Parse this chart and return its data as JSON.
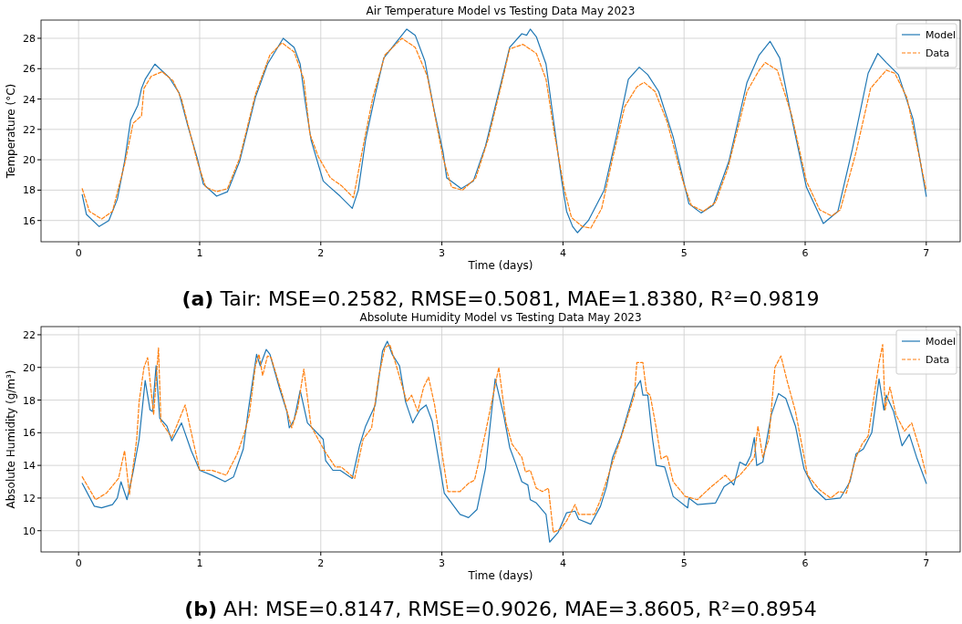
{
  "chart_data": [
    {
      "type": "line",
      "title": "Air Temperature Model vs Testing Data May 2023",
      "xlabel": "Time (days)",
      "ylabel": "Temperature (°C)",
      "annotations": [
        "(a) Tair: MSE=0.2582, RMSE=0.5081, MAE=1.8380, R²=0.9819"
      ],
      "xlim": [
        -0.31,
        7.28
      ],
      "xticks": [
        0,
        1,
        2,
        3,
        4,
        5,
        6,
        7
      ],
      "ylim": [
        14.6,
        29.2
      ],
      "yticks": [
        16,
        18,
        20,
        22,
        24,
        26,
        28
      ],
      "grid": true,
      "legend": "top right",
      "marker": "none",
      "series": [
        {
          "name": "Model",
          "color": "#1f77b4",
          "line_style": "solid",
          "x": [
            0.03,
            0.065,
            0.17,
            0.25,
            0.32,
            0.38,
            0.43,
            0.49,
            0.52,
            0.55,
            0.63,
            0.67,
            0.75,
            0.83,
            0.9,
            0.98,
            1.03,
            1.14,
            1.23,
            1.33,
            1.46,
            1.56,
            1.69,
            1.78,
            1.83,
            1.87,
            1.92,
            2.02,
            2.06,
            2.16,
            2.26,
            2.31,
            2.37,
            2.45,
            2.52,
            2.62,
            2.71,
            2.78,
            2.86,
            2.93,
            3.01,
            3.04,
            3.16,
            3.26,
            3.36,
            3.49,
            3.56,
            3.66,
            3.7,
            3.73,
            3.78,
            3.86,
            3.92,
            3.99,
            4.03,
            4.08,
            4.12,
            4.21,
            4.34,
            4.44,
            4.54,
            4.63,
            4.7,
            4.79,
            4.91,
            5.04,
            5.14,
            5.24,
            5.37,
            5.52,
            5.62,
            5.71,
            5.79,
            5.89,
            6.01,
            6.15,
            6.27,
            6.39,
            6.52,
            6.6,
            6.67,
            6.77,
            6.89,
            7.0
          ],
          "values": [
            17.7,
            16.4,
            15.6,
            16.0,
            17.4,
            19.9,
            22.6,
            23.6,
            24.7,
            25.3,
            26.3,
            26.0,
            25.4,
            24.4,
            22.3,
            20.1,
            18.4,
            17.6,
            17.9,
            19.9,
            24.1,
            26.3,
            28.0,
            27.4,
            26.3,
            23.9,
            21.3,
            18.6,
            18.3,
            17.6,
            16.8,
            18.0,
            21.3,
            24.3,
            26.7,
            27.7,
            28.6,
            28.2,
            26.5,
            23.5,
            20.5,
            18.8,
            18.1,
            18.6,
            20.9,
            25.1,
            27.4,
            28.3,
            28.2,
            28.6,
            28.1,
            26.3,
            22.7,
            18.6,
            16.6,
            15.6,
            15.2,
            16.0,
            18.0,
            21.5,
            25.3,
            26.1,
            25.6,
            24.5,
            21.5,
            17.1,
            16.5,
            17.0,
            19.9,
            25.1,
            26.9,
            27.8,
            26.7,
            22.7,
            18.2,
            15.8,
            16.6,
            20.7,
            25.7,
            27.0,
            26.4,
            25.6,
            22.7,
            17.6
          ]
        },
        {
          "name": "Data",
          "color": "#ff7f0e",
          "line_style": "dashed",
          "x": [
            0.03,
            0.09,
            0.19,
            0.28,
            0.38,
            0.45,
            0.52,
            0.54,
            0.6,
            0.69,
            0.78,
            0.85,
            0.98,
            1.05,
            1.14,
            1.23,
            1.33,
            1.46,
            1.58,
            1.68,
            1.78,
            1.86,
            1.91,
            1.98,
            2.08,
            2.17,
            2.27,
            2.35,
            2.43,
            2.53,
            2.67,
            2.78,
            2.88,
            3.01,
            3.08,
            3.17,
            3.28,
            3.38,
            3.49,
            3.56,
            3.67,
            3.78,
            3.86,
            3.93,
            4.01,
            4.07,
            4.16,
            4.23,
            4.32,
            4.41,
            4.51,
            4.61,
            4.67,
            4.76,
            4.86,
            4.99,
            5.06,
            5.16,
            5.26,
            5.36,
            5.52,
            5.62,
            5.67,
            5.77,
            5.89,
            6.01,
            6.12,
            6.22,
            6.29,
            6.42,
            6.54,
            6.67,
            6.74,
            6.84,
            7.0
          ],
          "values": [
            18.1,
            16.6,
            16.1,
            16.6,
            19.7,
            22.4,
            22.9,
            24.7,
            25.5,
            25.8,
            25.2,
            24.0,
            19.9,
            18.2,
            17.9,
            18.1,
            20.1,
            24.3,
            26.9,
            27.7,
            27.1,
            25.3,
            21.7,
            20.2,
            18.8,
            18.3,
            17.5,
            20.9,
            24.1,
            26.9,
            28.0,
            27.4,
            25.5,
            20.1,
            18.2,
            18.0,
            18.8,
            21.3,
            24.9,
            27.3,
            27.6,
            27.0,
            25.3,
            21.7,
            18.1,
            16.2,
            15.6,
            15.5,
            16.8,
            20.1,
            23.5,
            24.8,
            25.1,
            24.5,
            22.5,
            18.6,
            17.0,
            16.6,
            17.2,
            19.4,
            24.5,
            25.9,
            26.4,
            25.9,
            22.9,
            18.6,
            16.7,
            16.3,
            16.7,
            20.5,
            24.7,
            25.9,
            25.7,
            24.1,
            18.0
          ]
        }
      ]
    },
    {
      "type": "line",
      "title": "Absolute Humidity Model vs Testing Data May 2023",
      "xlabel": "Time (days)",
      "ylabel": "Absolute Humidity (g/m³)",
      "annotations": [
        "(b) AH: MSE=0.8147, RMSE=0.9026, MAE=3.8605, R²=0.8954"
      ],
      "xlim": [
        -0.31,
        7.28
      ],
      "xticks": [
        0,
        1,
        2,
        3,
        4,
        5,
        6,
        7
      ],
      "ylim": [
        8.7,
        22.5
      ],
      "yticks": [
        10,
        12,
        14,
        16,
        18,
        20,
        22
      ],
      "grid": true,
      "legend": "top right",
      "marker": "none",
      "series": [
        {
          "name": "Model",
          "color": "#1f77b4",
          "line_style": "solid",
          "x": [
            0.03,
            0.13,
            0.19,
            0.28,
            0.32,
            0.35,
            0.4,
            0.45,
            0.5,
            0.55,
            0.59,
            0.61,
            0.64,
            0.67,
            0.73,
            0.77,
            0.85,
            0.93,
            1.0,
            1.1,
            1.21,
            1.28,
            1.36,
            1.4,
            1.47,
            1.5,
            1.55,
            1.58,
            1.66,
            1.72,
            1.74,
            1.78,
            1.83,
            1.89,
            2.02,
            2.04,
            2.1,
            2.16,
            2.26,
            2.32,
            2.37,
            2.45,
            2.51,
            2.55,
            2.59,
            2.65,
            2.7,
            2.76,
            2.78,
            2.82,
            2.87,
            2.92,
            3.02,
            3.15,
            3.22,
            3.29,
            3.36,
            3.44,
            3.51,
            3.56,
            3.61,
            3.66,
            3.71,
            3.73,
            3.78,
            3.86,
            3.89,
            3.96,
            4.03,
            4.1,
            4.13,
            4.23,
            4.31,
            4.36,
            4.41,
            4.48,
            4.59,
            4.64,
            4.66,
            4.7,
            4.74,
            4.77,
            4.84,
            4.91,
            5.03,
            5.04,
            5.11,
            5.26,
            5.33,
            5.39,
            5.41,
            5.46,
            5.51,
            5.55,
            5.58,
            5.6,
            5.65,
            5.72,
            5.78,
            5.84,
            5.92,
            5.99,
            6.07,
            6.17,
            6.29,
            6.37,
            6.42,
            6.48,
            6.55,
            6.61,
            6.65,
            6.67,
            6.73,
            6.8,
            6.86,
            6.92,
            7.0
          ],
          "values": [
            12.9,
            11.5,
            11.4,
            11.6,
            12.0,
            13.0,
            11.9,
            13.6,
            15.6,
            19.2,
            17.4,
            17.3,
            20.1,
            16.9,
            16.4,
            15.5,
            16.6,
            14.9,
            13.7,
            13.4,
            13.0,
            13.3,
            15.0,
            17.3,
            20.8,
            20.1,
            21.1,
            20.8,
            18.7,
            17.3,
            16.3,
            16.8,
            18.6,
            16.6,
            15.6,
            14.3,
            13.7,
            13.7,
            13.2,
            15.2,
            16.4,
            17.7,
            21.0,
            21.6,
            20.8,
            20.1,
            17.9,
            16.6,
            16.9,
            17.4,
            17.7,
            16.7,
            12.3,
            11.0,
            10.8,
            11.3,
            13.8,
            19.3,
            17.1,
            15.1,
            14.1,
            13.0,
            12.8,
            11.9,
            11.7,
            11.0,
            9.3,
            9.9,
            11.1,
            11.2,
            10.7,
            10.4,
            11.5,
            12.7,
            14.5,
            15.8,
            18.6,
            19.2,
            18.3,
            18.3,
            15.6,
            14.0,
            13.9,
            12.1,
            11.4,
            12.0,
            11.6,
            11.7,
            12.7,
            13.0,
            12.8,
            14.2,
            14.0,
            14.6,
            15.7,
            14.0,
            14.2,
            17.1,
            18.4,
            18.1,
            16.4,
            13.8,
            12.6,
            11.9,
            12.0,
            13.0,
            14.7,
            15.0,
            16.0,
            19.3,
            17.4,
            18.3,
            17.3,
            15.2,
            15.9,
            14.5,
            12.9
          ]
        },
        {
          "name": "Data",
          "color": "#ff7f0e",
          "line_style": "dashed",
          "x": [
            0.03,
            0.14,
            0.23,
            0.33,
            0.38,
            0.42,
            0.48,
            0.5,
            0.54,
            0.57,
            0.62,
            0.66,
            0.68,
            0.77,
            0.88,
            1.0,
            1.1,
            1.22,
            1.31,
            1.37,
            1.41,
            1.46,
            1.49,
            1.52,
            1.56,
            1.59,
            1.68,
            1.76,
            1.81,
            1.86,
            1.92,
            2.03,
            2.12,
            2.17,
            2.28,
            2.35,
            2.42,
            2.48,
            2.53,
            2.57,
            2.62,
            2.71,
            2.75,
            2.8,
            2.85,
            2.89,
            2.94,
            3.05,
            3.15,
            3.22,
            3.27,
            3.36,
            3.47,
            3.53,
            3.58,
            3.66,
            3.69,
            3.73,
            3.78,
            3.83,
            3.88,
            3.92,
            3.98,
            4.03,
            4.1,
            4.13,
            4.26,
            4.31,
            4.41,
            4.48,
            4.59,
            4.61,
            4.66,
            4.69,
            4.72,
            4.77,
            4.81,
            4.86,
            4.91,
            5.01,
            5.11,
            5.21,
            5.34,
            5.39,
            5.46,
            5.53,
            5.58,
            5.61,
            5.65,
            5.7,
            5.75,
            5.8,
            5.85,
            5.92,
            6.02,
            6.12,
            6.21,
            6.28,
            6.34,
            6.42,
            6.47,
            6.52,
            6.61,
            6.64,
            6.66,
            6.7,
            6.75,
            6.82,
            6.88,
            6.95,
            7.0
          ],
          "values": [
            13.3,
            11.9,
            12.3,
            13.2,
            14.9,
            12.2,
            15.6,
            17.9,
            20.0,
            20.6,
            17.1,
            21.2,
            16.7,
            15.7,
            17.7,
            13.7,
            13.7,
            13.4,
            14.7,
            16.0,
            17.1,
            20.1,
            20.8,
            19.5,
            20.7,
            20.6,
            18.4,
            16.3,
            17.5,
            19.9,
            16.4,
            14.9,
            13.9,
            13.9,
            13.2,
            15.6,
            16.3,
            19.5,
            21.2,
            21.4,
            20.2,
            17.9,
            18.3,
            17.3,
            18.8,
            19.4,
            17.7,
            12.4,
            12.4,
            12.9,
            13.1,
            16.0,
            20.0,
            16.6,
            15.3,
            14.5,
            13.6,
            13.7,
            12.6,
            12.4,
            12.6,
            9.9,
            10.1,
            10.6,
            11.6,
            11.0,
            11.0,
            11.9,
            14.2,
            15.7,
            18.3,
            20.3,
            20.3,
            18.5,
            18.3,
            16.3,
            14.4,
            14.6,
            13.0,
            12.1,
            11.9,
            12.6,
            13.4,
            13.0,
            13.4,
            14.0,
            14.5,
            16.4,
            14.5,
            15.6,
            20.0,
            20.7,
            19.2,
            17.3,
            13.4,
            12.5,
            12.0,
            12.4,
            12.3,
            14.5,
            15.3,
            15.8,
            20.3,
            21.4,
            17.4,
            18.8,
            17.1,
            16.1,
            16.6,
            14.9,
            13.4
          ]
        }
      ]
    }
  ]
}
